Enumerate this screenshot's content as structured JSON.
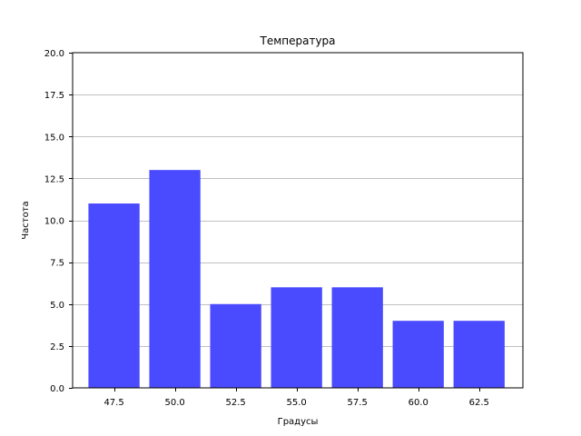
{
  "chart_data": {
    "type": "bar",
    "title": "Температура",
    "xlabel": "Градусы",
    "ylabel": "Частота",
    "categories": [
      "47.5",
      "50.0",
      "52.5",
      "55.0",
      "57.5",
      "60.0",
      "62.5"
    ],
    "x": [
      47.5,
      50.0,
      52.5,
      55.0,
      57.5,
      60.0,
      62.5
    ],
    "values": [
      11,
      13,
      5,
      6,
      6,
      4,
      4
    ],
    "xlim": [
      45.8,
      64.3
    ],
    "ylim": [
      0,
      20
    ],
    "yticks": [
      0.0,
      2.5,
      5.0,
      7.5,
      10.0,
      12.5,
      15.0,
      17.5,
      20.0
    ],
    "ytick_labels": [
      "0.0",
      "2.5",
      "5.0",
      "7.5",
      "10.0",
      "12.5",
      "15.0",
      "17.5",
      "20.0"
    ],
    "bar_width": 2.1,
    "grid": "y",
    "colors": {
      "bar": "#4a4aff",
      "grid": "#c0c0c0",
      "axis": "#000000"
    }
  }
}
